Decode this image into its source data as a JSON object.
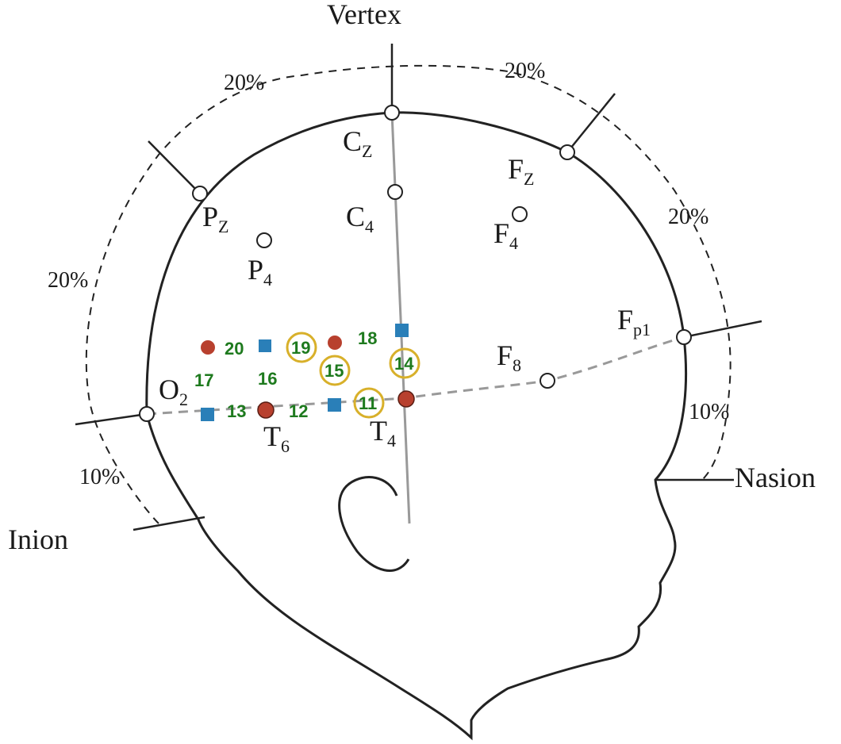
{
  "landmarks": {
    "vertex": "Vertex",
    "nasion": "Nasion",
    "inion": "Inion"
  },
  "percentages": {
    "upper_left": "20%",
    "upper_right": "20%",
    "left": "20%",
    "right": "20%",
    "lower_right": "10%",
    "lower_left": "10%"
  },
  "electrodes": {
    "cz": {
      "base": "C",
      "sub": "Z"
    },
    "fz": {
      "base": "F",
      "sub": "Z"
    },
    "pz": {
      "base": "P",
      "sub": "Z"
    },
    "c4": {
      "base": "C",
      "sub": "4"
    },
    "f4": {
      "base": "F",
      "sub": "4"
    },
    "p4": {
      "base": "P",
      "sub": "4"
    },
    "fp1": {
      "base": "F",
      "sub": "p1"
    },
    "f8": {
      "base": "F",
      "sub": "8"
    },
    "o2": {
      "base": "O",
      "sub": "2"
    },
    "t6": {
      "base": "T",
      "sub": "6"
    },
    "t4": {
      "base": "T",
      "sub": "4"
    }
  },
  "channels": {
    "ch11": "11",
    "ch12": "12",
    "ch13": "13",
    "ch14": "14",
    "ch15": "15",
    "ch16": "16",
    "ch17": "17",
    "ch18": "18",
    "ch19": "19",
    "ch20": "20"
  },
  "colors": {
    "outline": "#222222",
    "guide_line": "#999999",
    "red_marker": "#b8402e",
    "blue_marker": "#2a7fb8",
    "yellow_ring": "#d8b02a",
    "channel_text": "#1e7a1e"
  }
}
